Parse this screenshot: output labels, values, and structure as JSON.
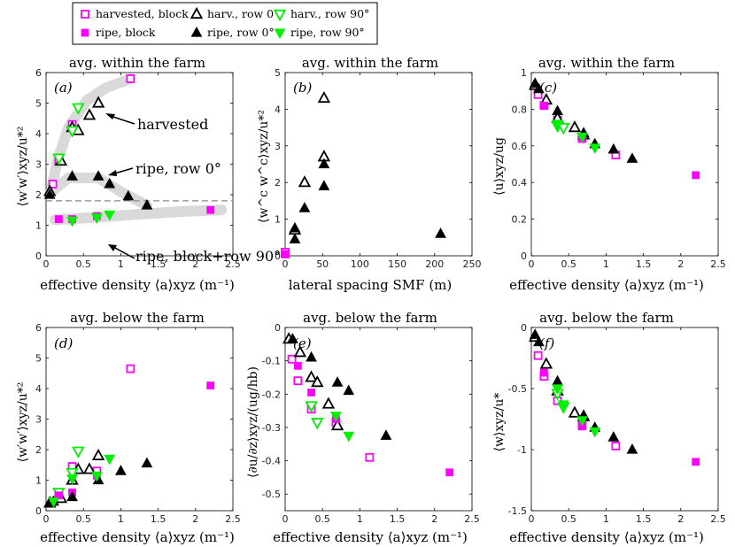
{
  "colors": {
    "magenta": "#ff00ff",
    "black": "#000000",
    "green": "#00ee00",
    "band": "#d9d9d9"
  },
  "legend": {
    "entries": [
      {
        "label": "harvested, block",
        "marker": "square-open",
        "color": "#ff00ff"
      },
      {
        "label": "harv., row 0°",
        "marker": "triangle-up-open",
        "color": "#000000"
      },
      {
        "label": "harv., row 90°",
        "marker": "triangle-down-open",
        "color": "#00ee00"
      },
      {
        "label": "ripe, block",
        "marker": "square-filled",
        "color": "#ff00ff"
      },
      {
        "label": "ripe, row 0°",
        "marker": "triangle-up-filled",
        "color": "#000000"
      },
      {
        "label": "ripe, row 90°",
        "marker": "triangle-down-filled",
        "color": "#00ee00"
      }
    ]
  },
  "chart_data": [
    {
      "type": "scatter",
      "panel": "(a)",
      "title": "avg. within the farm",
      "xlabel": "effective density ⟨a⟩xyz (m⁻¹)",
      "ylabel": "⟨w′w′⟩xyz/u*²",
      "xlim": [
        0,
        2.5
      ],
      "ylim": [
        0,
        6
      ],
      "xticks": [
        "0",
        "0.5",
        "1",
        "1.5",
        "2",
        "2.5"
      ],
      "yticks": [
        "0",
        "1",
        "2",
        "3",
        "4",
        "5",
        "6"
      ],
      "reference_line": 1.8,
      "annotations": [
        "harvested",
        "ripe, row 0°",
        "ripe, block+row 90°"
      ],
      "series": [
        {
          "name": "harvested, block",
          "x": [
            0.09,
            0.17,
            0.35,
            1.13
          ],
          "y": [
            2.35,
            3.1,
            4.3,
            5.8
          ]
        },
        {
          "name": "harv., row 0°",
          "x": [
            0.05,
            0.2,
            0.35,
            0.43,
            0.58,
            0.7
          ],
          "y": [
            2.1,
            3.1,
            4.2,
            4.1,
            4.6,
            5.0
          ]
        },
        {
          "name": "harv., row 90°",
          "x": [
            0.17,
            0.35,
            0.43
          ],
          "y": [
            3.2,
            4.1,
            4.85
          ]
        },
        {
          "name": "ripe, block",
          "x": [
            0.17,
            0.35,
            0.68,
            2.2
          ],
          "y": [
            1.2,
            1.2,
            1.3,
            1.5
          ]
        },
        {
          "name": "ripe, row 0°",
          "x": [
            0.05,
            0.35,
            0.7,
            0.85,
            1.1,
            1.35
          ],
          "y": [
            2.0,
            2.6,
            2.6,
            2.35,
            1.95,
            1.65
          ]
        },
        {
          "name": "ripe, row 90°",
          "x": [
            0.35,
            0.68,
            0.85
          ],
          "y": [
            1.15,
            1.25,
            1.35
          ]
        }
      ]
    },
    {
      "type": "scatter",
      "panel": "(b)",
      "title": "avg. within the farm",
      "xlabel": "lateral spacing SMF (m)",
      "ylabel": "⟨w^c w^c⟩xyz/u*²",
      "xlim": [
        0,
        250
      ],
      "ylim": [
        0,
        5
      ],
      "xticks": [
        "0",
        "50",
        "100",
        "150",
        "200",
        "250"
      ],
      "yticks": [
        "0",
        "1",
        "2",
        "3",
        "4",
        "5"
      ],
      "series": [
        {
          "name": "harvested, block",
          "x": [
            0,
            0
          ],
          "y": [
            0.05,
            0.1
          ]
        },
        {
          "name": "harv., row 0°",
          "x": [
            13,
            26,
            52,
            52
          ],
          "y": [
            0.7,
            2.0,
            2.7,
            4.3
          ]
        },
        {
          "name": "ripe, block",
          "x": [
            0
          ],
          "y": [
            0.05
          ]
        },
        {
          "name": "ripe, row 0°",
          "x": [
            13,
            13,
            26,
            52,
            52,
            208
          ],
          "y": [
            0.45,
            0.75,
            1.3,
            1.9,
            2.5,
            0.6
          ]
        }
      ]
    },
    {
      "type": "scatter",
      "panel": "(c)",
      "title": "avg. within the farm",
      "xlabel": "effective density ⟨a⟩xyz (m⁻¹)",
      "ylabel": "⟨u⟩xyz/ug",
      "xlim": [
        0,
        2.5
      ],
      "ylim": [
        0,
        1
      ],
      "xticks": [
        "0",
        "0.5",
        "1",
        "1.5",
        "2",
        "2.5"
      ],
      "yticks": [
        "0",
        "0.2",
        "0.4",
        "0.6",
        "0.8",
        "1"
      ],
      "series": [
        {
          "name": "harvested, block",
          "x": [
            0.09,
            0.17,
            0.35,
            0.68,
            1.13
          ],
          "y": [
            0.88,
            0.82,
            0.74,
            0.64,
            0.55
          ]
        },
        {
          "name": "harv., row 0°",
          "x": [
            0.05,
            0.2,
            0.35,
            0.58,
            0.7
          ],
          "y": [
            0.93,
            0.85,
            0.75,
            0.7,
            0.66
          ]
        },
        {
          "name": "harv., row 90°",
          "x": [
            0.35,
            0.43
          ],
          "y": [
            0.71,
            0.7
          ]
        },
        {
          "name": "ripe, block",
          "x": [
            0.17,
            0.68,
            2.2
          ],
          "y": [
            0.82,
            0.64,
            0.44
          ]
        },
        {
          "name": "ripe, row 0°",
          "x": [
            0.05,
            0.1,
            0.35,
            0.7,
            0.85,
            1.1,
            1.35
          ],
          "y": [
            0.94,
            0.91,
            0.79,
            0.67,
            0.61,
            0.58,
            0.53
          ]
        },
        {
          "name": "ripe, row 90°",
          "x": [
            0.35,
            0.68,
            0.85
          ],
          "y": [
            0.72,
            0.65,
            0.59
          ]
        }
      ]
    },
    {
      "type": "scatter",
      "panel": "(d)",
      "title": "avg. below the farm",
      "xlabel": "effective density ⟨a⟩xyz (m⁻¹)",
      "ylabel": "⟨w′w′⟩xyz/u*²",
      "xlim": [
        0,
        2.5
      ],
      "ylim": [
        0,
        6
      ],
      "xticks": [
        "0",
        "0.5",
        "1",
        "1.5",
        "2",
        "2.5"
      ],
      "yticks": [
        "0",
        "1",
        "2",
        "3",
        "4",
        "5",
        "6"
      ],
      "series": [
        {
          "name": "harvested, block",
          "x": [
            0.09,
            0.17,
            0.35,
            0.68,
            1.13
          ],
          "y": [
            0.3,
            0.6,
            1.45,
            1.3,
            4.65
          ]
        },
        {
          "name": "harv., row 0°",
          "x": [
            0.05,
            0.2,
            0.35,
            0.43,
            0.58,
            0.7
          ],
          "y": [
            0.25,
            0.4,
            1.0,
            1.35,
            1.35,
            1.8
          ]
        },
        {
          "name": "harv., row 90°",
          "x": [
            0.17,
            0.35,
            0.43
          ],
          "y": [
            0.6,
            1.25,
            1.95
          ]
        },
        {
          "name": "ripe, block",
          "x": [
            0.17,
            0.35,
            0.68,
            2.2
          ],
          "y": [
            0.5,
            0.6,
            1.15,
            4.1
          ]
        },
        {
          "name": "ripe, row 0°",
          "x": [
            0.05,
            0.1,
            0.35,
            0.7,
            1.0,
            1.35
          ],
          "y": [
            0.25,
            0.3,
            0.45,
            1.0,
            1.3,
            1.55
          ]
        },
        {
          "name": "ripe, row 90°",
          "x": [
            0.1,
            0.35,
            0.68,
            0.85
          ],
          "y": [
            0.3,
            1.05,
            1.15,
            1.7
          ]
        }
      ]
    },
    {
      "type": "scatter",
      "panel": "(e)",
      "title": "avg. below the farm",
      "xlabel": "effective density ⟨a⟩xyz (m⁻¹)",
      "ylabel": "⟨∂u/∂z⟩xyz/(ug/hb)",
      "xlim": [
        0,
        2.5
      ],
      "ylim": [
        -0.55,
        0
      ],
      "xticks": [
        "0",
        "0.5",
        "1",
        "1.5",
        "2",
        "2.5"
      ],
      "yticks": [
        "0",
        "-0.1",
        "-0.2",
        "-0.3",
        "-0.4",
        "-0.5"
      ],
      "series": [
        {
          "name": "harvested, block",
          "x": [
            0.09,
            0.17,
            0.35,
            0.68,
            1.13
          ],
          "y": [
            -0.095,
            -0.16,
            -0.245,
            -0.285,
            -0.39
          ]
        },
        {
          "name": "harv., row 0°",
          "x": [
            0.05,
            0.2,
            0.35,
            0.43,
            0.58,
            0.7
          ],
          "y": [
            -0.035,
            -0.075,
            -0.15,
            -0.165,
            -0.23,
            -0.295
          ]
        },
        {
          "name": "harv., row 90°",
          "x": [
            0.35,
            0.43
          ],
          "y": [
            -0.235,
            -0.285
          ]
        },
        {
          "name": "ripe, block",
          "x": [
            0.17,
            0.35,
            0.68,
            2.2
          ],
          "y": [
            -0.115,
            -0.195,
            -0.275,
            -0.435
          ]
        },
        {
          "name": "ripe, row 0°",
          "x": [
            0.1,
            0.35,
            0.7,
            0.85,
            1.35
          ],
          "y": [
            -0.035,
            -0.09,
            -0.165,
            -0.19,
            -0.325
          ]
        },
        {
          "name": "ripe, row 90°",
          "x": [
            0.68,
            0.85
          ],
          "y": [
            -0.265,
            -0.325
          ]
        }
      ]
    },
    {
      "type": "scatter",
      "panel": "(f)",
      "title": "avg. below the farm",
      "xlabel": "effective density ⟨a⟩xyz (m⁻¹)",
      "ylabel": "⟨w⟩xyz/u*",
      "xlim": [
        0,
        2.5
      ],
      "ylim": [
        -1.5,
        0
      ],
      "xticks": [
        "0",
        "0.5",
        "1",
        "1.5",
        "2",
        "2.5"
      ],
      "yticks": [
        "0",
        "-0.5",
        "-1",
        "-1.5"
      ],
      "series": [
        {
          "name": "harvested, block",
          "x": [
            0.09,
            0.17,
            0.35,
            0.68,
            1.13
          ],
          "y": [
            -0.23,
            -0.4,
            -0.6,
            -0.8,
            -0.97
          ]
        },
        {
          "name": "harv., row 0°",
          "x": [
            0.05,
            0.2,
            0.35,
            0.58,
            0.7
          ],
          "y": [
            -0.08,
            -0.3,
            -0.52,
            -0.7,
            -0.73
          ]
        },
        {
          "name": "harv., row 90°",
          "x": [
            0.35,
            0.43
          ],
          "y": [
            -0.54,
            -0.65
          ]
        },
        {
          "name": "ripe, block",
          "x": [
            0.17,
            0.68,
            2.2
          ],
          "y": [
            -0.37,
            -0.81,
            -1.1
          ]
        },
        {
          "name": "ripe, row 0°",
          "x": [
            0.05,
            0.1,
            0.35,
            0.7,
            0.85,
            1.1,
            1.35
          ],
          "y": [
            -0.06,
            -0.12,
            -0.44,
            -0.72,
            -0.82,
            -0.9,
            -1.0
          ]
        },
        {
          "name": "ripe, row 90°",
          "x": [
            0.35,
            0.43,
            0.68,
            0.85
          ],
          "y": [
            -0.5,
            -0.63,
            -0.76,
            -0.85
          ]
        }
      ]
    }
  ]
}
